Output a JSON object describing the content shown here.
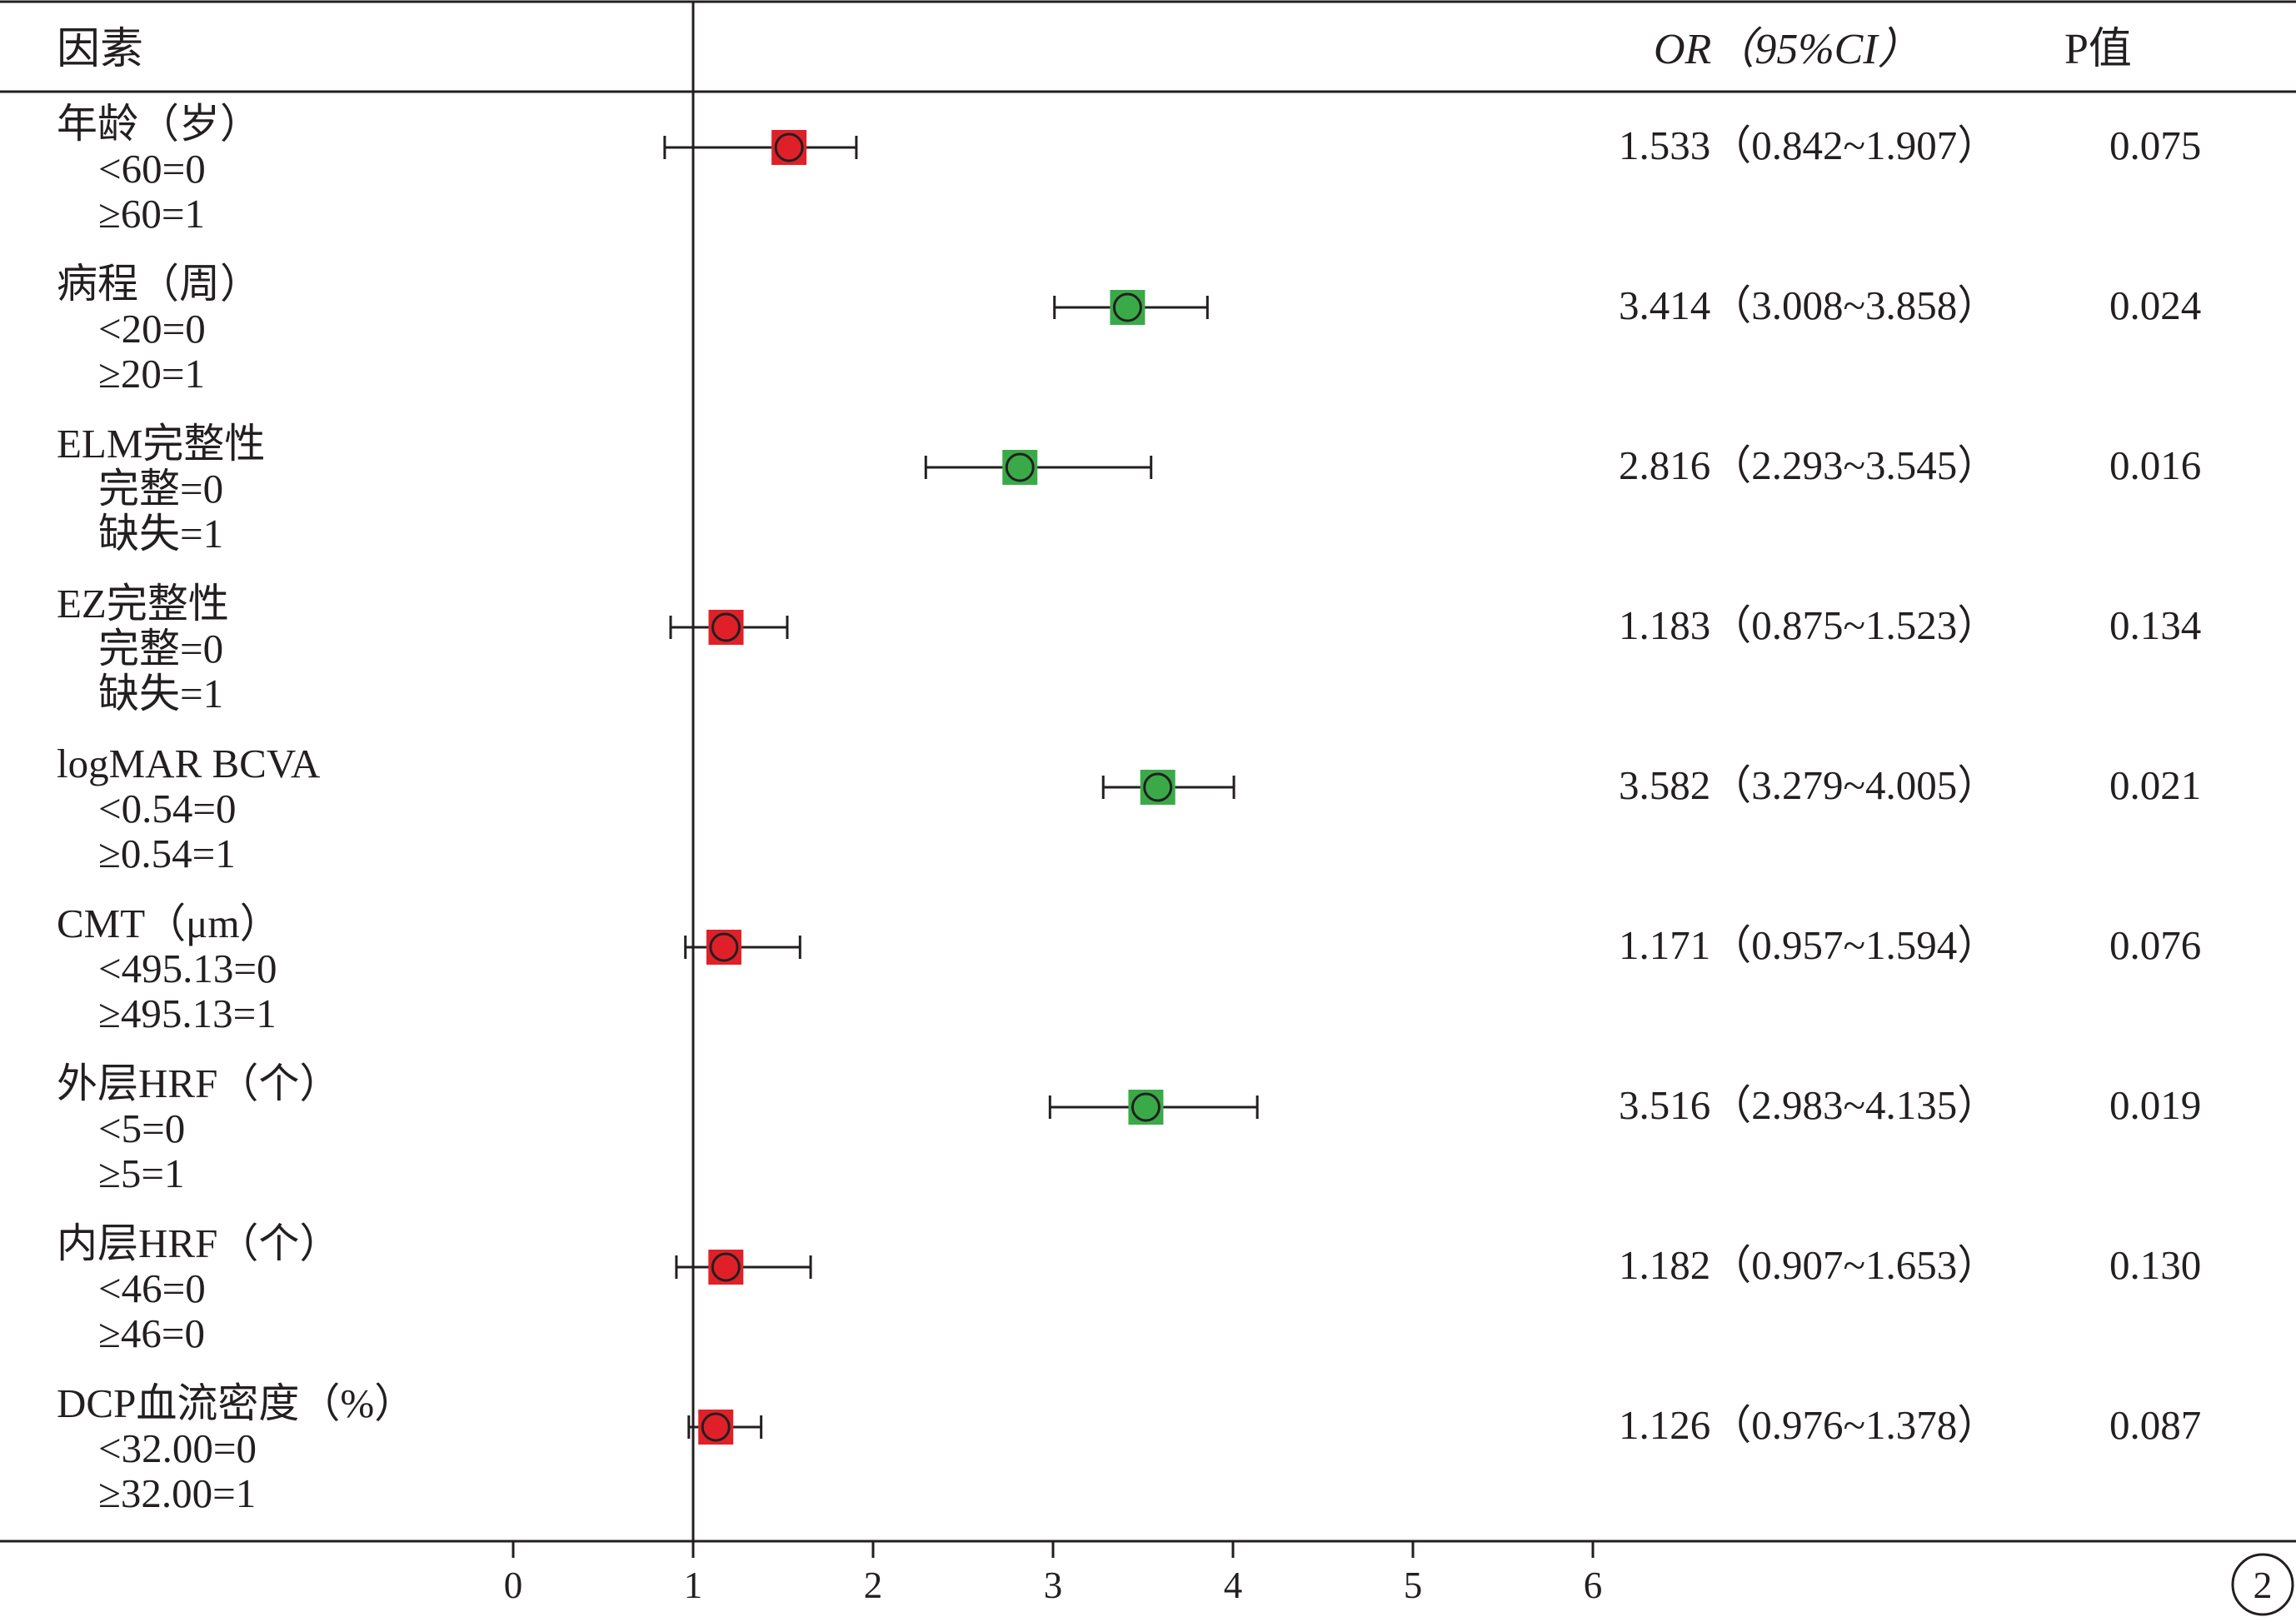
{
  "header": {
    "factor_label": "因素",
    "or_ci_label": "OR（95%CI）",
    "p_label": "P值"
  },
  "page_number": "2",
  "colors": {
    "nonsignificant": "#e02028",
    "significant": "#3aaa48",
    "ink": "#231f20"
  },
  "chart_data": {
    "type": "forest",
    "x_ticks": [
      "0",
      "1",
      "2",
      "3",
      "4",
      "5",
      "6"
    ],
    "xlim": [
      0,
      6
    ],
    "reference_line": 1,
    "rows": [
      {
        "label": "年龄（岁）",
        "levels": [
          "<60=0",
          "≥60=1"
        ],
        "or": 1.533,
        "lower": 0.842,
        "upper": 1.907,
        "or_ci_text": "1.533（0.842~1.907）",
        "p": "0.075",
        "significant": false
      },
      {
        "label": "病程（周）",
        "levels": [
          "<20=0",
          "≥20=1"
        ],
        "or": 3.414,
        "lower": 3.008,
        "upper": 3.858,
        "or_ci_text": "3.414（3.008~3.858）",
        "p": "0.024",
        "significant": true
      },
      {
        "label": "ELM完整性",
        "levels": [
          "完整=0",
          "缺失=1"
        ],
        "or": 2.816,
        "lower": 2.293,
        "upper": 3.545,
        "or_ci_text": "2.816（2.293~3.545）",
        "p": "0.016",
        "significant": true
      },
      {
        "label": "EZ完整性",
        "levels": [
          "完整=0",
          "缺失=1"
        ],
        "or": 1.183,
        "lower": 0.875,
        "upper": 1.523,
        "or_ci_text": "1.183（0.875~1.523）",
        "p": "0.134",
        "significant": false
      },
      {
        "label": "logMAR BCVA",
        "levels": [
          "<0.54=0",
          "≥0.54=1"
        ],
        "or": 3.582,
        "lower": 3.279,
        "upper": 4.005,
        "or_ci_text": "3.582（3.279~4.005）",
        "p": "0.021",
        "significant": true
      },
      {
        "label": "CMT（μm）",
        "levels": [
          "<495.13=0",
          "≥495.13=1"
        ],
        "or": 1.171,
        "lower": 0.957,
        "upper": 1.594,
        "or_ci_text": "1.171（0.957~1.594）",
        "p": "0.076",
        "significant": false
      },
      {
        "label": "外层HRF（个）",
        "levels": [
          "<5=0",
          "≥5=1"
        ],
        "or": 3.516,
        "lower": 2.983,
        "upper": 4.135,
        "or_ci_text": "3.516（2.983~4.135）",
        "p": "0.019",
        "significant": true
      },
      {
        "label": "内层HRF（个）",
        "levels": [
          "<46=0",
          "≥46=0"
        ],
        "or": 1.182,
        "lower": 0.907,
        "upper": 1.653,
        "or_ci_text": "1.182（0.907~1.653）",
        "p": "0.130",
        "significant": false
      },
      {
        "label": "DCP血流密度（%）",
        "levels": [
          "<32.00=0",
          "≥32.00=1"
        ],
        "or": 1.126,
        "lower": 0.976,
        "upper": 1.378,
        "or_ci_text": "1.126（0.976~1.378）",
        "p": "0.087",
        "significant": false
      }
    ]
  }
}
